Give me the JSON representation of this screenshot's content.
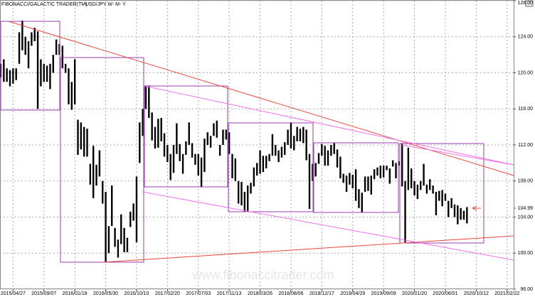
{
  "chart_data": {
    "type": "range_bar",
    "title": "FIBONACCI/GALACTIC TRADER(TM)",
    "subtitle": "USD/JPY W- M- Y",
    "watermark": "www.fibonaccitrader.com",
    "color": "#000000",
    "grid": true,
    "last_price": 104.99,
    "ylim": [
      96,
      128
    ],
    "yticks": [
      {
        "value": 96,
        "label": "96.00"
      },
      {
        "value": 100,
        "label": "100.00"
      },
      {
        "value": 104,
        "label": "104.00"
      },
      {
        "value": 108,
        "label": "108.00"
      },
      {
        "value": 112,
        "label": "112.00"
      },
      {
        "value": 116,
        "label": "116.00"
      },
      {
        "value": 120,
        "label": "120.00"
      },
      {
        "value": 124,
        "label": "124.00"
      },
      {
        "value": 128,
        "label": "128.00"
      }
    ],
    "categories": [
      null,
      null,
      null,
      null,
      "2015/04/27",
      null,
      null,
      null,
      null,
      null,
      null,
      null,
      null,
      null,
      "2015/09/07",
      null,
      null,
      null,
      null,
      null,
      null,
      null,
      null,
      null,
      "2016/01/18",
      null,
      null,
      null,
      null,
      null,
      null,
      null,
      null,
      null,
      "2016/05/30",
      null,
      null,
      null,
      null,
      null,
      null,
      null,
      null,
      null,
      "2016/10/10",
      null,
      null,
      null,
      null,
      null,
      null,
      null,
      null,
      null,
      "2017/02/20",
      null,
      null,
      null,
      null,
      null,
      null,
      null,
      null,
      null,
      "2017/07/03",
      null,
      null,
      null,
      null,
      null,
      null,
      null,
      null,
      null,
      "2017/11/13",
      null,
      null,
      null,
      null,
      null,
      null,
      null,
      null,
      null,
      "2018/03/26",
      null,
      null,
      null,
      null,
      null,
      null,
      null,
      null,
      null,
      "2018/08/06",
      null,
      null,
      null,
      null,
      null,
      null,
      null,
      null,
      null,
      "2018/12/17",
      null,
      null,
      null,
      null,
      null,
      null,
      null,
      null,
      null,
      "2019/04/29",
      null,
      null,
      null,
      null,
      null,
      null,
      null,
      null,
      null,
      "2019/09/09",
      null,
      null,
      null,
      null,
      null,
      null,
      null,
      null,
      null,
      "2020/01/20",
      null,
      null,
      null,
      null,
      null,
      null,
      null,
      null,
      null,
      "2020/06/01",
      null,
      null,
      null,
      null,
      null,
      null,
      null,
      null,
      null,
      "2020/10/12",
      null,
      null,
      null,
      null,
      null,
      null,
      null,
      null,
      null,
      "2021/02/22"
    ],
    "high": [
      121.0,
      121.5,
      120.5,
      120.3,
      120.5,
      120.5,
      124.5,
      125.8,
      124.0,
      123.5,
      124.5,
      125.0,
      124.6,
      121.5,
      121.0,
      120.8,
      121.0,
      122.0,
      123.7,
      123.2,
      123.0,
      121.0,
      120.5,
      119.0,
      121.5,
      114.8,
      114.5,
      114.0,
      113.8,
      109.9,
      111.9,
      109.8,
      111.4,
      108.0,
      106.8,
      103.0,
      107.5,
      102.8,
      101.5,
      104.3,
      102.8,
      101.7,
      104.6,
      105.5,
      108.5,
      114.5,
      116.0,
      118.6,
      118.6,
      115.6,
      114.0,
      114.9,
      115.0,
      113.3,
      112.0,
      111.0,
      112.0,
      114.4,
      112.1,
      111.0,
      112.4,
      114.5,
      112.2,
      111.0,
      111.0,
      110.6,
      112.7,
      113.4,
      113.0,
      114.4,
      114.7,
      112.0,
      113.7,
      113.7,
      113.4,
      111.0,
      110.5,
      108.0,
      107.9,
      106.8,
      107.5,
      107.8,
      109.5,
      110.0,
      111.4,
      110.8,
      110.8,
      111.0,
      113.2,
      112.0,
      111.4,
      111.8,
      112.3,
      113.7,
      114.5,
      113.0,
      114.0,
      113.8,
      114.0,
      113.7,
      111.0,
      109.9,
      110.0,
      111.1,
      112.1,
      111.9,
      111.4,
      112.0,
      112.2,
      111.5,
      110.7,
      108.8,
      108.6,
      108.9,
      108.7,
      109.3,
      107.1,
      106.7,
      108.5,
      108.5,
      108.6,
      109.3,
      109.5,
      109.7,
      109.7,
      109.7,
      109.4,
      110.3,
      110.0,
      110.2,
      112.2,
      108.0,
      111.7,
      109.4,
      108.0,
      107.6,
      108.0,
      109.9,
      107.6,
      108.2,
      107.5,
      106.8,
      106.9,
      107.0,
      106.6,
      105.8,
      106.1,
      105.4,
      105.3,
      105.0,
      104.7,
      105.1,
      null,
      null,
      null,
      null,
      null,
      null,
      null,
      null,
      null,
      null,
      null,
      null,
      null
    ],
    "low": [
      119.5,
      119.0,
      119.0,
      118.5,
      118.8,
      119.2,
      121.0,
      122.5,
      122.0,
      120.5,
      123.0,
      123.5,
      116.0,
      118.5,
      119.0,
      119.0,
      118.2,
      120.0,
      122.0,
      122.0,
      120.5,
      120.0,
      116.5,
      115.9,
      116.5,
      110.9,
      111.5,
      110.7,
      110.7,
      107.6,
      106.1,
      107.5,
      108.5,
      105.5,
      99.0,
      100.0,
      103.0,
      100.7,
      99.5,
      101.0,
      100.1,
      100.1,
      102.9,
      103.6,
      101.2,
      110.0,
      113.0,
      116.0,
      115.0,
      112.5,
      111.6,
      111.7,
      112.4,
      110.7,
      110.1,
      108.1,
      108.9,
      111.0,
      110.2,
      108.8,
      110.9,
      112.0,
      110.6,
      109.8,
      108.6,
      107.3,
      109.0,
      112.0,
      111.7,
      113.0,
      112.8,
      110.8,
      112.0,
      112.6,
      111.0,
      108.3,
      108.0,
      105.5,
      105.3,
      104.6,
      104.6,
      106.6,
      107.4,
      108.6,
      108.8,
      109.0,
      109.4,
      110.2,
      110.8,
      110.8,
      110.1,
      110.6,
      110.9,
      112.0,
      111.6,
      111.4,
      112.4,
      112.4,
      112.2,
      110.3,
      104.9,
      108.0,
      108.5,
      109.9,
      110.8,
      109.7,
      109.7,
      110.8,
      111.0,
      109.5,
      108.3,
      107.8,
      106.8,
      107.6,
      107.2,
      105.8,
      105.0,
      104.5,
      106.8,
      106.9,
      106.5,
      108.2,
      108.6,
      108.3,
      108.4,
      109.2,
      107.7,
      109.6,
      108.3,
      109.7,
      107.4,
      101.2,
      107.0,
      107.2,
      106.4,
      106.0,
      107.0,
      107.5,
      106.6,
      107.0,
      106.6,
      104.2,
      105.8,
      105.2,
      105.8,
      104.0,
      105.0,
      104.0,
      103.2,
      103.7,
      103.7,
      103.3,
      null,
      null,
      null,
      null,
      null,
      null,
      null,
      null,
      null,
      null,
      null,
      null,
      null
    ]
  }
}
